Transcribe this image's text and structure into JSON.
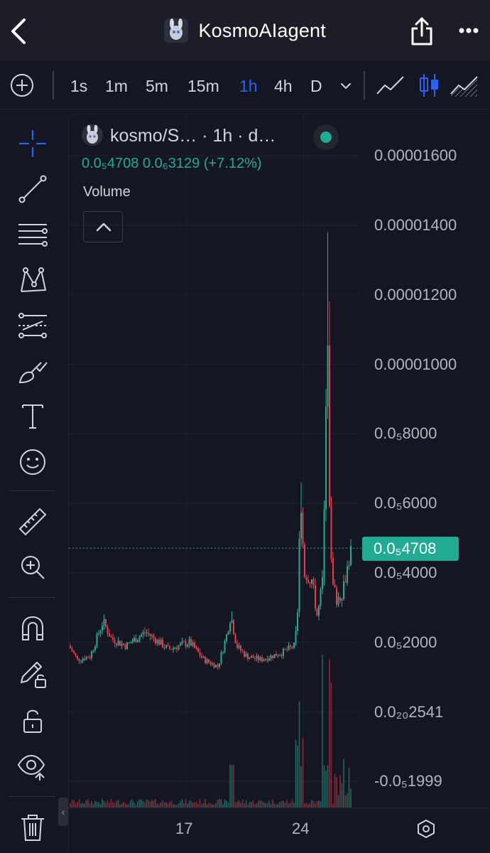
{
  "header": {
    "title": "KosmoAIagent"
  },
  "toolbar": {
    "timeframes": [
      "1s",
      "1m",
      "5m",
      "15m",
      "1h",
      "4h",
      "D"
    ],
    "active_timeframe": "1h"
  },
  "legend": {
    "symbol": "kosmo/S…  · 1h · d…",
    "ohlc": "0.0₅4708  0.0₆3129 (+7.12%)",
    "volume_label": "Volume"
  },
  "price_axis": {
    "labels": [
      "0.00001600",
      "0.00001400",
      "0.00001200",
      "0.00001000",
      "0.0₅8000",
      "0.0₅6000",
      "0.0₅4000",
      "0.0₅2000",
      "0.0₂₀2541",
      "-0.0₅1999"
    ],
    "last_price": "0.0₅4708"
  },
  "time_axis": {
    "labels": [
      "17",
      "24"
    ]
  },
  "colors": {
    "up": "#22ab94",
    "down": "#f23645",
    "accent": "#2962ff",
    "background": "#141622"
  },
  "chart_data": {
    "type": "candlestick",
    "interval": "1h",
    "y_ticks": [
      1.6e-05,
      1.4e-05,
      1.2e-05,
      1e-05,
      8e-06,
      6e-06,
      4e-06,
      2e-06,
      0,
      -2e-06
    ],
    "last_price": 4.708e-06,
    "change": 3.129e-07,
    "change_percent": 7.12,
    "x_labels": [
      "17",
      "24"
    ],
    "close_profile_approx": [
      {
        "t": "start",
        "price": 1.9e-06
      },
      {
        "t": "pre-17 peak",
        "price": 2.7e-06
      },
      {
        "t": "17",
        "price": 1.8e-06
      },
      {
        "t": "mid-week low",
        "price": 1.3e-06
      },
      {
        "t": "mid-week spike",
        "price": 2.9e-06
      },
      {
        "t": "pre-24",
        "price": 1.9e-06
      },
      {
        "t": "24 breakout high",
        "price": 6.6e-06
      },
      {
        "t": "post-breakout",
        "price": 4e-06
      },
      {
        "t": "dip",
        "price": 2.7e-06
      },
      {
        "t": "ATH wick",
        "price": 1.38e-05
      },
      {
        "t": "retrace",
        "price": 3.1e-06
      },
      {
        "t": "last",
        "price": 4.708e-06
      }
    ]
  }
}
